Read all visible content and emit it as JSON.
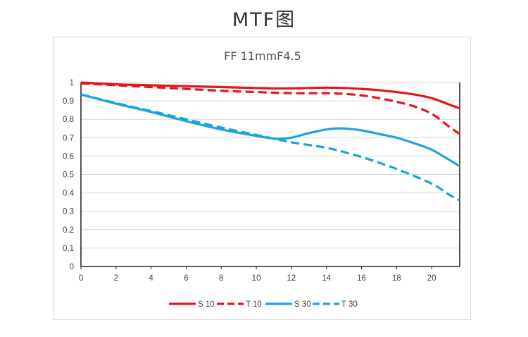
{
  "page": {
    "heading": "MTF图"
  },
  "chart_data": {
    "type": "line",
    "title": "FF 11mmF4.5",
    "xlabel": "",
    "ylabel": "",
    "xlim": [
      0,
      21.6
    ],
    "ylim": [
      0,
      1
    ],
    "x_ticks": [
      "0",
      "2",
      "4",
      "6",
      "8",
      "10",
      "12",
      "14",
      "16",
      "18",
      "20"
    ],
    "y_ticks": [
      "0",
      "0.1",
      "0.2",
      "0.3",
      "0.4",
      "0.5",
      "0.6",
      "0.7",
      "0.8",
      "0.9",
      "1"
    ],
    "grid": "horizontal",
    "legend_position": "bottom",
    "series": [
      {
        "name": "S 10",
        "color": "#e8141b",
        "dash": "solid",
        "x": [
          0,
          2,
          4,
          6,
          8,
          10,
          11,
          12,
          13,
          14,
          15,
          16,
          17,
          18,
          19,
          20,
          21,
          21.6
        ],
        "y": [
          1.0,
          0.99,
          0.985,
          0.98,
          0.975,
          0.97,
          0.968,
          0.968,
          0.97,
          0.972,
          0.97,
          0.965,
          0.958,
          0.948,
          0.935,
          0.915,
          0.88,
          0.86
        ]
      },
      {
        "name": "T 10",
        "color": "#e8141b",
        "dash": "dashed",
        "x": [
          0,
          2,
          4,
          6,
          8,
          10,
          12,
          14,
          15,
          16,
          17,
          18,
          19,
          20,
          21,
          21.6
        ],
        "y": [
          0.995,
          0.985,
          0.975,
          0.965,
          0.955,
          0.948,
          0.942,
          0.942,
          0.938,
          0.93,
          0.915,
          0.895,
          0.87,
          0.83,
          0.76,
          0.72
        ]
      },
      {
        "name": "S 30",
        "color": "#1aa3e0",
        "dash": "solid",
        "x": [
          0,
          2,
          4,
          6,
          8,
          10,
          11,
          11.5,
          12,
          13,
          14,
          14.5,
          15,
          16,
          17,
          18,
          19,
          20,
          21,
          21.6
        ],
        "y": [
          0.935,
          0.885,
          0.84,
          0.79,
          0.745,
          0.71,
          0.695,
          0.695,
          0.7,
          0.725,
          0.745,
          0.75,
          0.75,
          0.74,
          0.72,
          0.7,
          0.67,
          0.635,
          0.58,
          0.545
        ]
      },
      {
        "name": "T 30",
        "color": "#1aa3e0",
        "dash": "dashed",
        "x": [
          0,
          2,
          4,
          6,
          8,
          10,
          12,
          14,
          16,
          18,
          20,
          21,
          21.6
        ],
        "y": [
          0.935,
          0.888,
          0.845,
          0.8,
          0.755,
          0.715,
          0.675,
          0.645,
          0.595,
          0.53,
          0.45,
          0.39,
          0.36
        ]
      }
    ]
  }
}
